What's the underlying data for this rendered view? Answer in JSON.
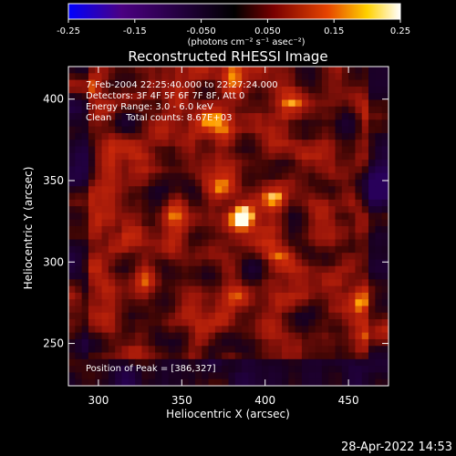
{
  "chart_data": {
    "type": "heatmap",
    "title": "Reconstructed RHESSI Image",
    "xlabel": "Heliocentric X (arcsec)",
    "ylabel": "Heliocentric Y (arcsec)",
    "xlim": [
      282,
      474
    ],
    "ylim": [
      224,
      420
    ],
    "xticks": [
      300,
      350,
      400,
      450
    ],
    "yticks": [
      250,
      300,
      350,
      400
    ],
    "colorbar": {
      "min": -0.25,
      "max": 0.25,
      "ticks": [
        "-0.25",
        "-0.15",
        "-0.050",
        "0.050",
        "0.15",
        "0.25"
      ],
      "units": "(photons cm⁻² s⁻¹ asec⁻²)",
      "colormap": [
        "#0000ff",
        "#4b0082",
        "#000000",
        "#7a0000",
        "#e64400",
        "#ffd100",
        "#ffffff"
      ]
    },
    "annotations": [
      "7-Feb-2004 22:25:40.000 to 22:27:24.000",
      "Detectors: 3F 4F 5F 6F 7F 8F, Att 0",
      "Energy Range: 3.0 - 6.0 keV",
      "Clean     Total counts: 8.67E+03"
    ],
    "peak_label": "Position of Peak = [386,327]",
    "peak": {
      "x": 386,
      "y": 327
    },
    "timestamp": "28-Apr-2022 14:53"
  }
}
